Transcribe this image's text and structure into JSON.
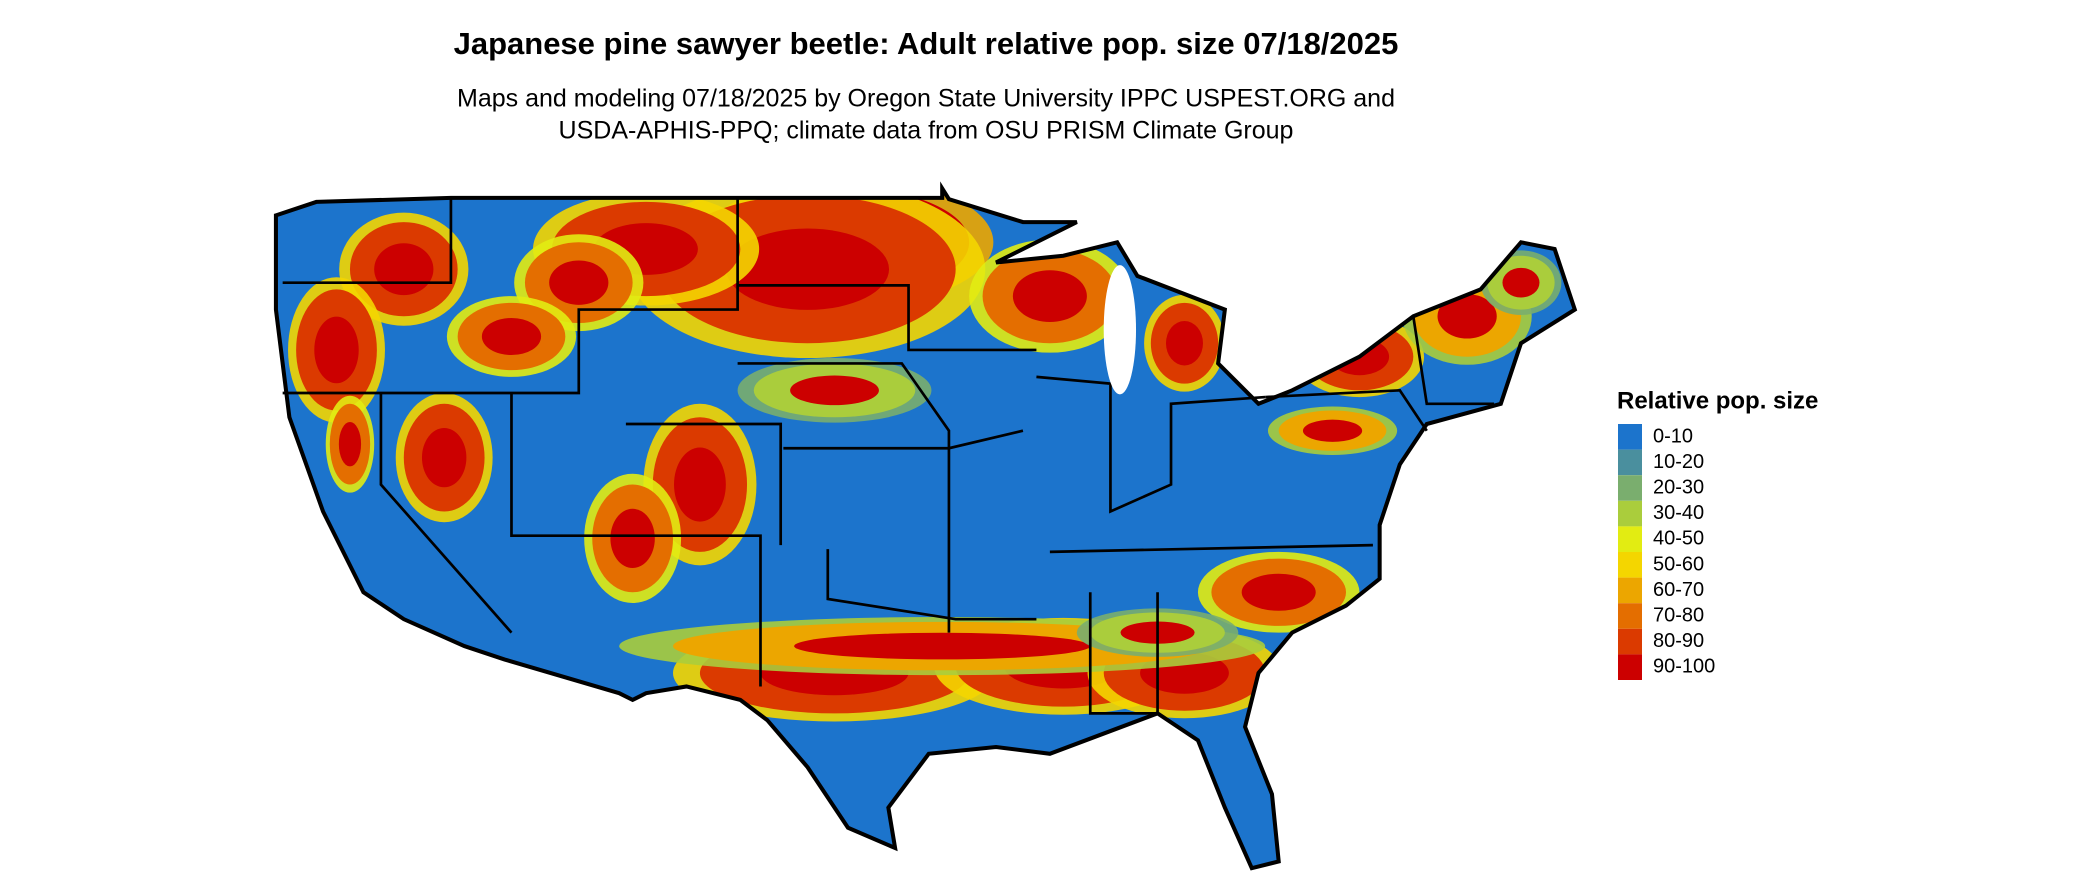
{
  "header": {
    "title": "Japanese pine sawyer beetle: Adult relative pop. size 07/18/2025",
    "subtitle_lines": [
      "Maps and modeling 07/18/2025 by Oregon State University IPPC USPEST.ORG and",
      "USDA-APHIS-PPQ; climate data from OSU PRISM Climate Group"
    ]
  },
  "legend": {
    "title": "Relative pop. size",
    "items": [
      {
        "label": "0-10",
        "color": "#1c74cc"
      },
      {
        "label": "10-20",
        "color": "#4a8f9e"
      },
      {
        "label": "20-30",
        "color": "#7aae6e"
      },
      {
        "label": "30-40",
        "color": "#aacd3c"
      },
      {
        "label": "40-50",
        "color": "#e2ec12"
      },
      {
        "label": "50-60",
        "color": "#f4d600"
      },
      {
        "label": "60-70",
        "color": "#eca600"
      },
      {
        "label": "70-80",
        "color": "#e46e00"
      },
      {
        "label": "80-90",
        "color": "#db3a00"
      },
      {
        "label": "90-100",
        "color": "#cc0000"
      }
    ]
  }
}
